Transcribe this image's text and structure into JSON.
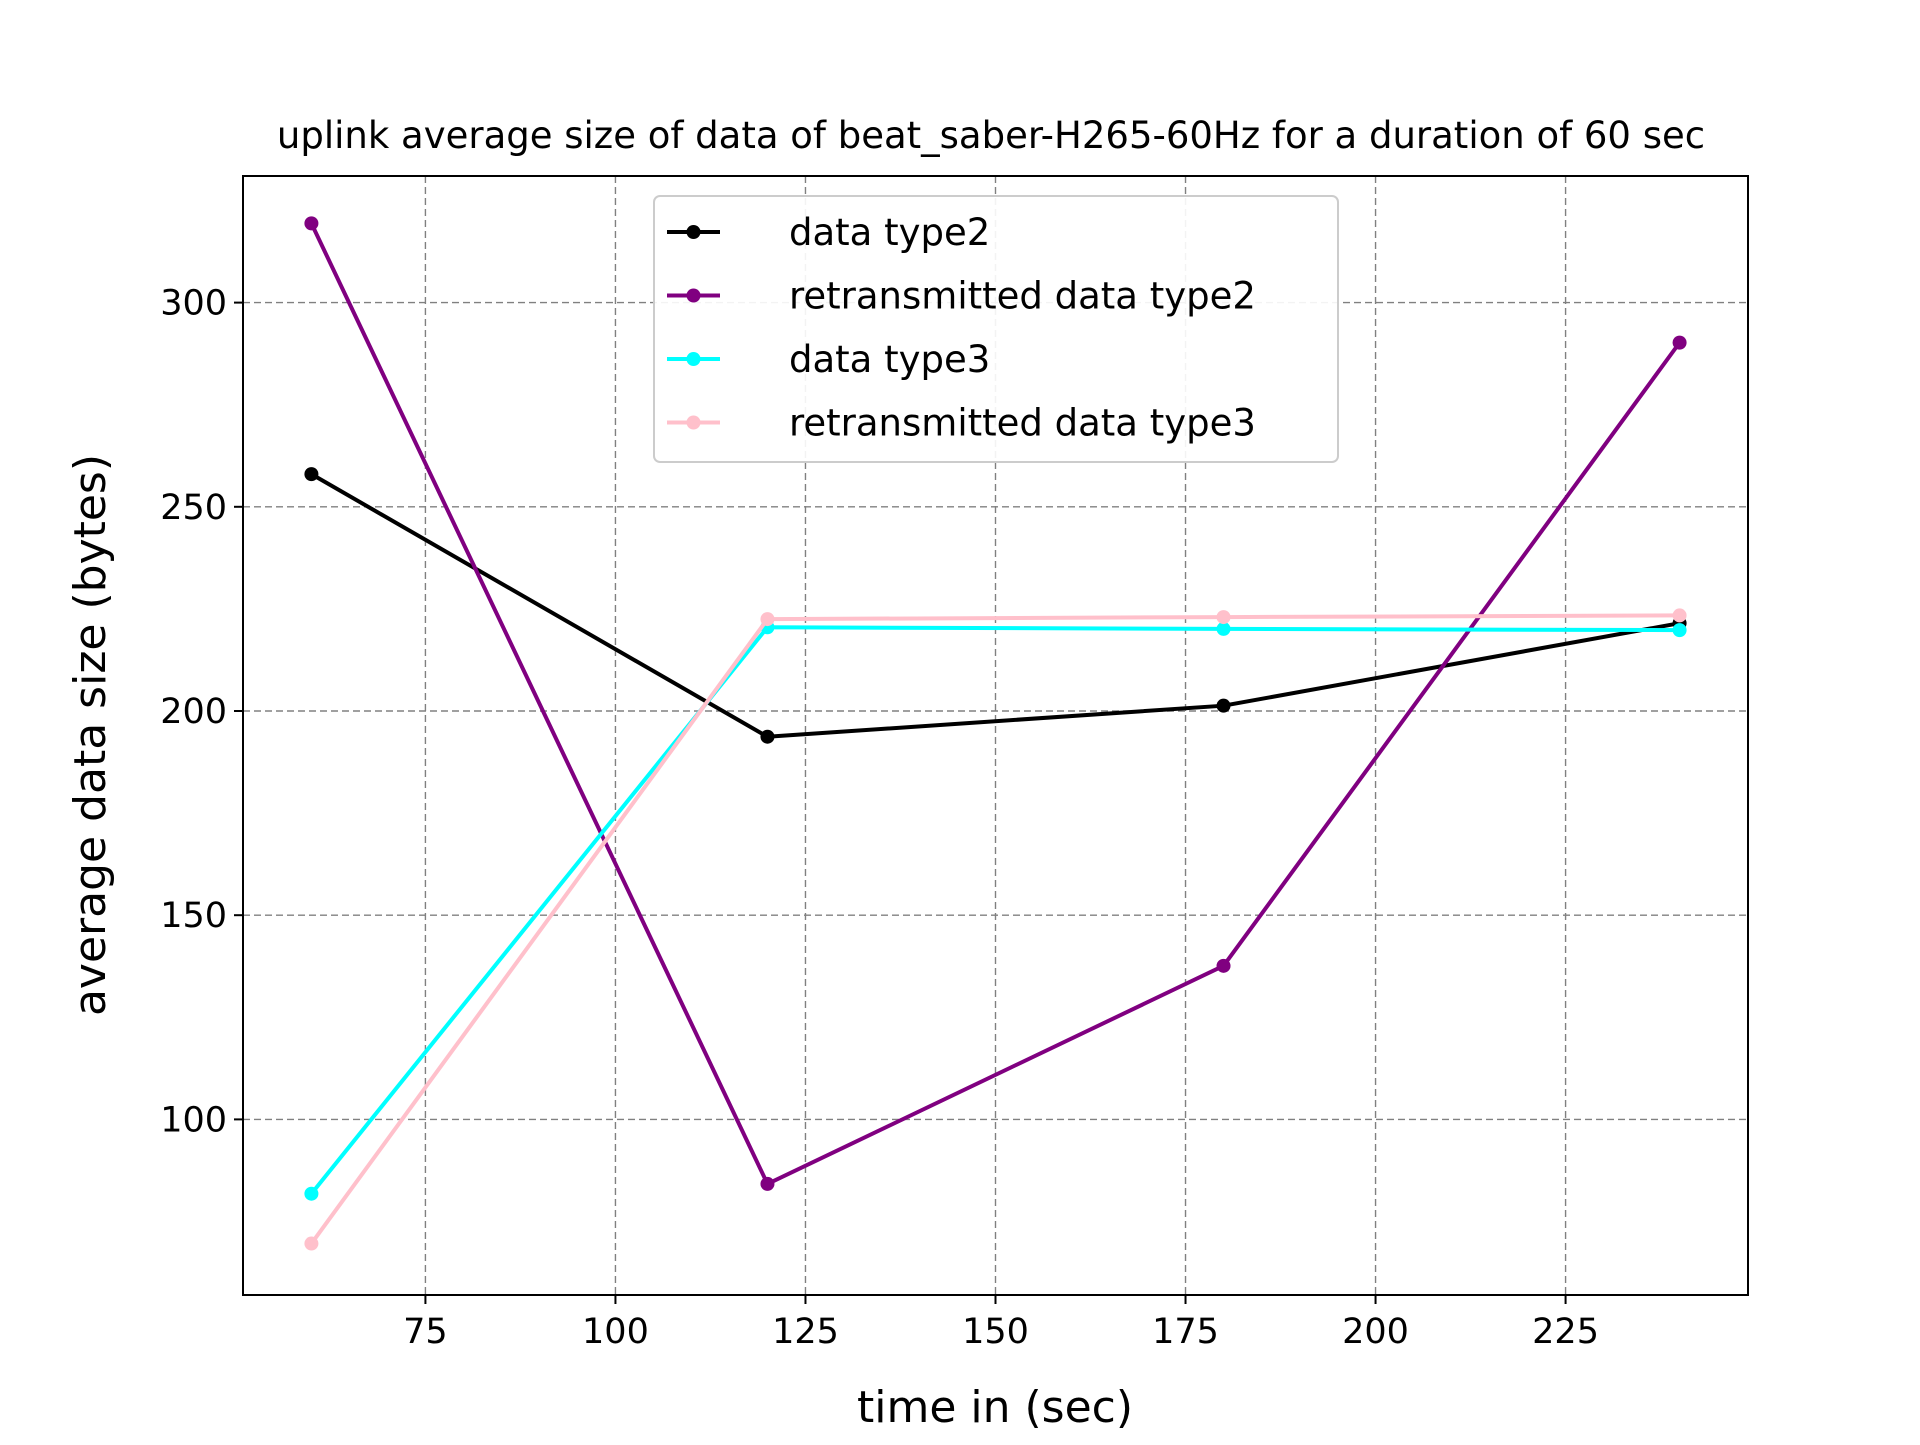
{
  "chart_data": {
    "type": "line",
    "title": "uplink average size of data of beat_saber-H265-60Hz for a duration of 60 sec",
    "xlabel": "time in (sec)",
    "ylabel": "average data size (bytes)",
    "xlim": [
      51,
      249
    ],
    "ylim": [
      57,
      331
    ],
    "xticks": [
      75,
      100,
      125,
      150,
      175,
      200,
      225
    ],
    "xtick_labels": [
      "75",
      "100",
      "125",
      "150",
      "175",
      "200",
      "225"
    ],
    "yticks": [
      100,
      150,
      200,
      250,
      300
    ],
    "ytick_labels": [
      "100",
      "150",
      "200",
      "250",
      "300"
    ],
    "grid": true,
    "legend_position": "top-center",
    "x": [
      60,
      120,
      180,
      240
    ],
    "series": [
      {
        "name": "data type2",
        "color": "#000000",
        "values": [
          258,
          193.7,
          201.3,
          221.5
        ]
      },
      {
        "name": "retransmitted data type2",
        "color": "#800080",
        "values": [
          319.4,
          84.2,
          137.6,
          290.2
        ]
      },
      {
        "name": "data type3",
        "color": "#00FFFF",
        "values": [
          81.8,
          220.5,
          220.1,
          219.8
        ]
      },
      {
        "name": "retransmitted data type3",
        "color": "#FFC0CB",
        "values": [
          69.6,
          222.5,
          223,
          223.4
        ]
      }
    ]
  }
}
